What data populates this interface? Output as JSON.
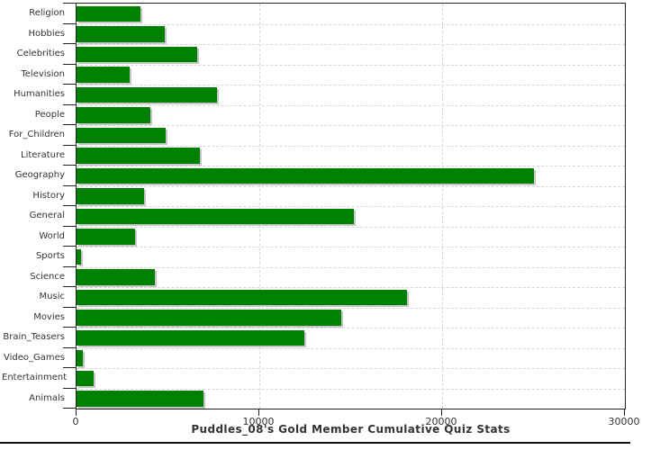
{
  "chart_data": {
    "type": "bar",
    "orientation": "horizontal",
    "title": "Puddles_08's Gold Member Cumulative Quiz Stats",
    "categories": [
      "Religion",
      "Hobbies",
      "Celebrities",
      "Television",
      "Humanities",
      "People",
      "For_Children",
      "Literature",
      "Geography",
      "History",
      "General",
      "World",
      "Sports",
      "Science",
      "Music",
      "Movies",
      "Brain_Teasers",
      "Video_Games",
      "Entertainment",
      "Animals"
    ],
    "values": [
      3500,
      4850,
      6600,
      2900,
      7700,
      4050,
      4900,
      6750,
      25000,
      3700,
      15150,
      3200,
      250,
      4300,
      18100,
      14500,
      12450,
      350,
      950,
      6950
    ],
    "xlabel": "",
    "ylabel": "",
    "xlim": [
      0,
      30000
    ],
    "xticks": [
      0,
      10000,
      20000,
      30000
    ],
    "grid": "dashed",
    "legend_position": "none"
  },
  "colors": {
    "bar": "#008000",
    "bar_shadow": "#c6c6c6",
    "grid": "#d7d7d7",
    "axis": "#222222",
    "text": "#333333",
    "background": "#ffffff"
  }
}
